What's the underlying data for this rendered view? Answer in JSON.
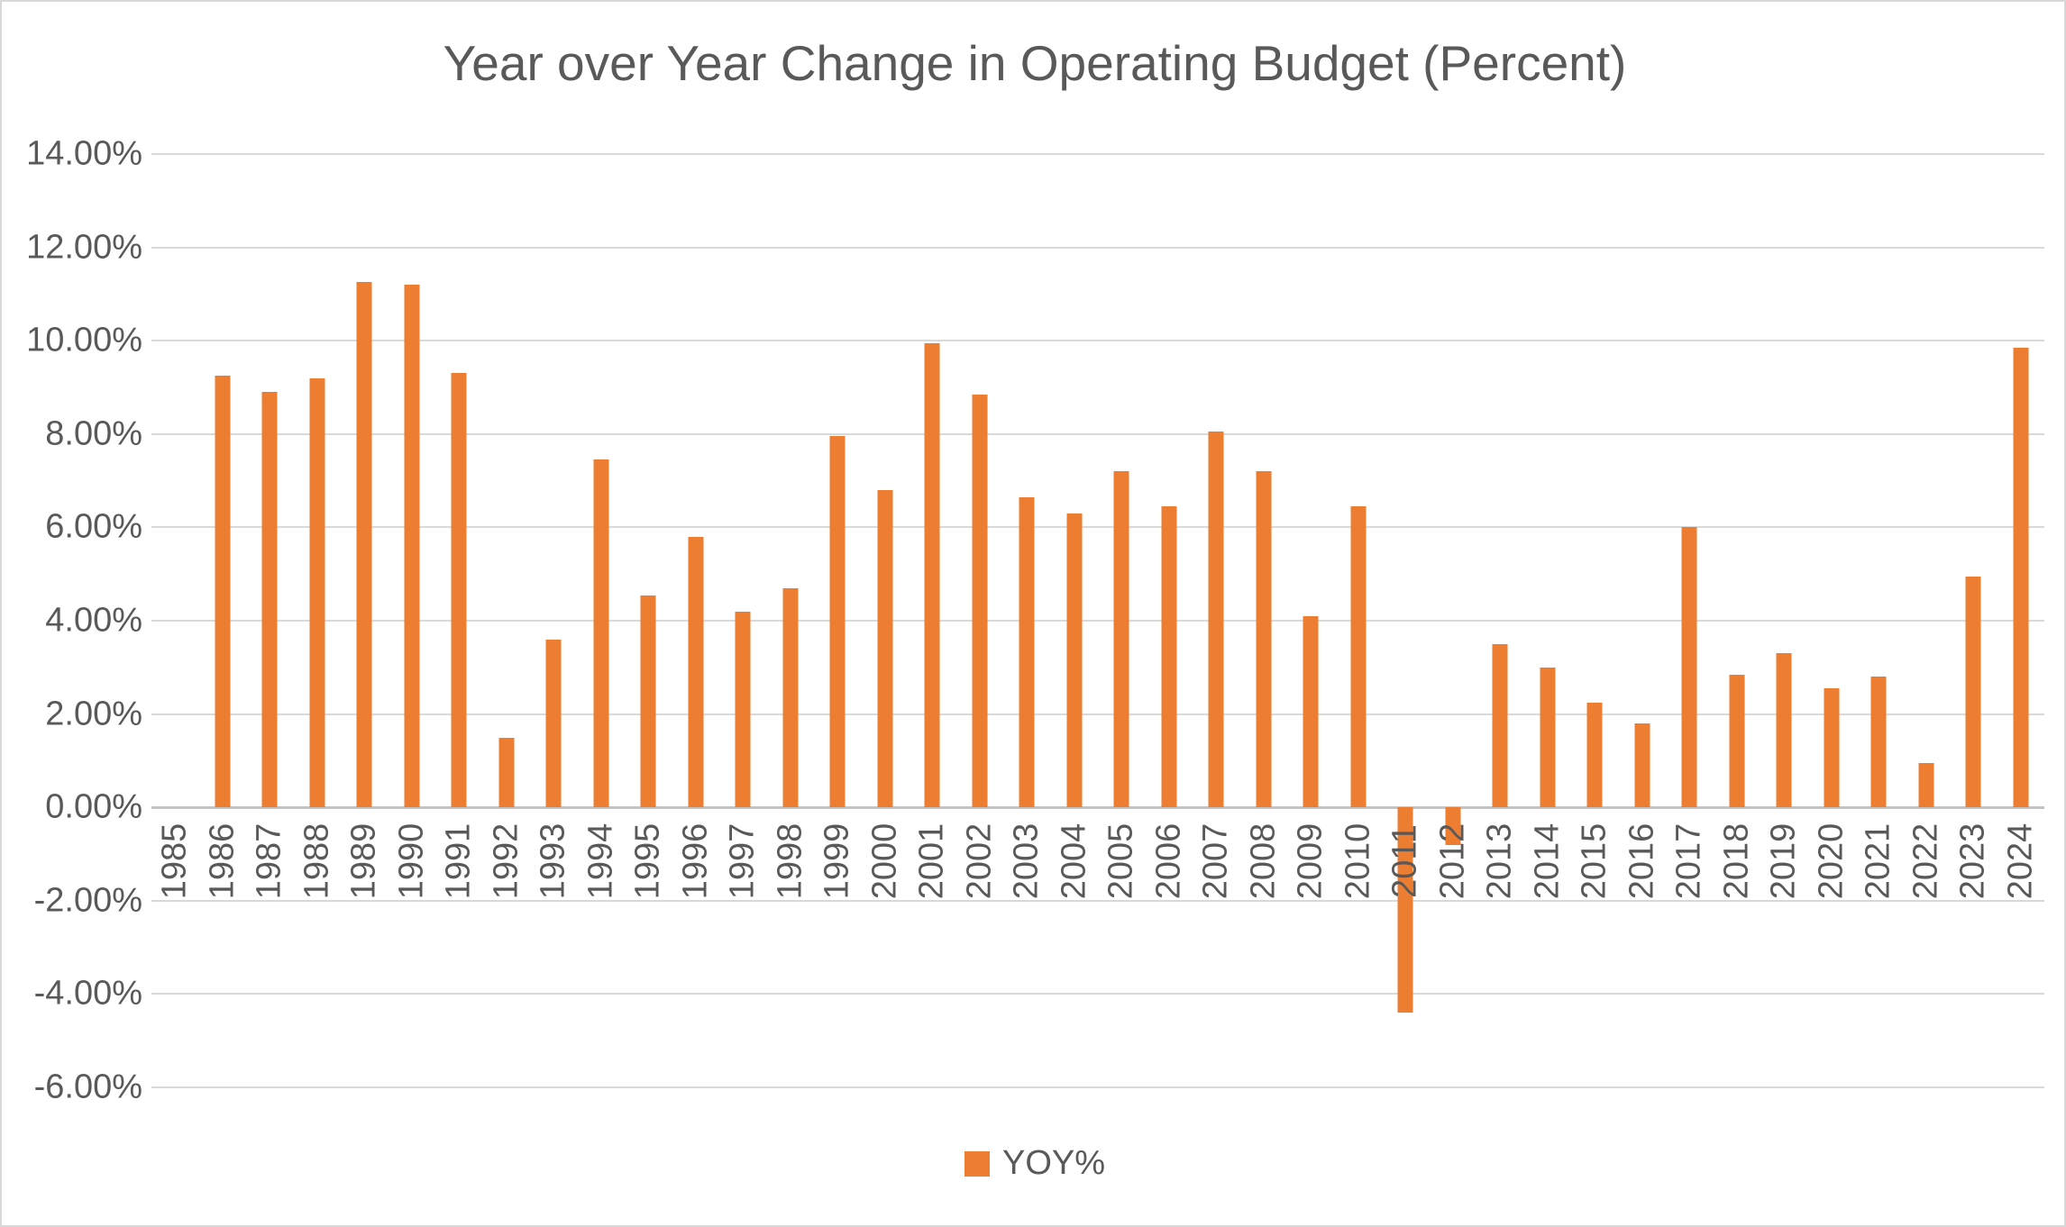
{
  "chart_data": {
    "type": "bar",
    "title": "Year over Year Change in Operating Budget (Percent)",
    "categories": [
      "1985",
      "1986",
      "1987",
      "1988",
      "1989",
      "1990",
      "1991",
      "1992",
      "1993",
      "1994",
      "1995",
      "1996",
      "1997",
      "1998",
      "1999",
      "2000",
      "2001",
      "2002",
      "2003",
      "2004",
      "2005",
      "2006",
      "2007",
      "2008",
      "2009",
      "2010",
      "2011",
      "2012",
      "2013",
      "2014",
      "2015",
      "2016",
      "2017",
      "2018",
      "2019",
      "2020",
      "2021",
      "2022",
      "2023",
      "2024"
    ],
    "values": [
      0,
      9.25,
      8.9,
      9.2,
      11.25,
      11.2,
      9.3,
      1.5,
      3.6,
      7.45,
      4.55,
      5.8,
      4.2,
      4.7,
      7.95,
      6.8,
      9.95,
      8.85,
      6.65,
      6.3,
      7.2,
      6.45,
      8.05,
      7.2,
      4.1,
      6.45,
      -4.4,
      -0.8,
      3.5,
      3.0,
      2.25,
      1.8,
      6.0,
      2.85,
      3.3,
      2.55,
      2.8,
      0.95,
      4.95,
      9.85
    ],
    "series_name": "YOY%",
    "xlabel": "",
    "ylabel": "",
    "ylim": [
      -6,
      14
    ],
    "ytick_step": 2,
    "ytick_labels": [
      "14.00%",
      "12.00%",
      "10.00%",
      "8.00%",
      "6.00%",
      "4.00%",
      "2.00%",
      "0.00%",
      "-2.00%",
      "-4.00%",
      "-6.00%"
    ],
    "grid": "horizontal",
    "legend_position": "bottom",
    "bar_color": "#ED7D31",
    "gridline_color": "#D9D9D9",
    "text_color": "#595959"
  },
  "legend": {
    "label": "YOY%"
  },
  "title_text": "Year over Year Change in Operating Budget (Percent)"
}
